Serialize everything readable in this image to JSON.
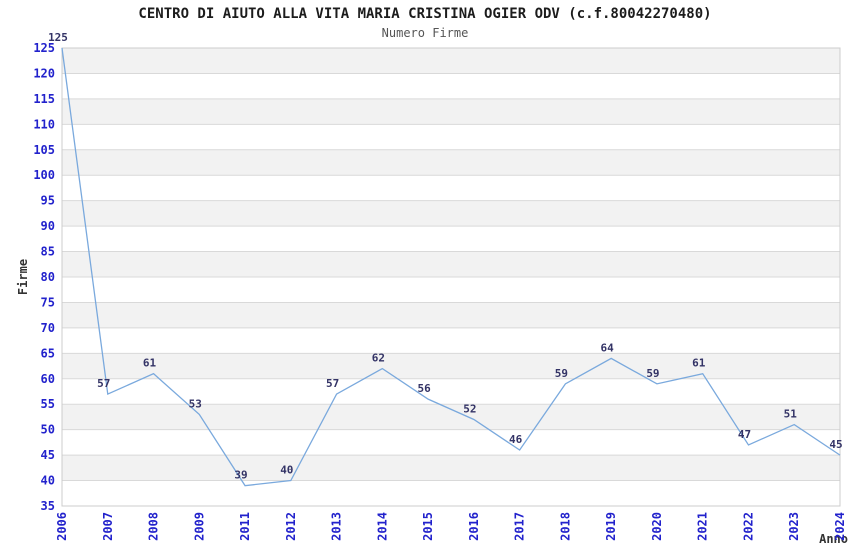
{
  "title": "CENTRO DI AIUTO ALLA VITA MARIA CRISTINA OGIER ODV (c.f.80042270480)",
  "subtitle": "Numero Firme",
  "chart_data": {
    "type": "line",
    "title": "CENTRO DI AIUTO ALLA VITA MARIA CRISTINA OGIER ODV (c.f.80042270480)",
    "subtitle": "Numero Firme",
    "x": [
      "2006",
      "2007",
      "2008",
      "2009",
      "2011",
      "2012",
      "2013",
      "2014",
      "2015",
      "2016",
      "2017",
      "2018",
      "2019",
      "2020",
      "2021",
      "2022",
      "2023",
      "2024"
    ],
    "values": [
      125,
      57,
      61,
      53,
      39,
      40,
      57,
      62,
      56,
      52,
      46,
      59,
      64,
      59,
      61,
      47,
      51,
      45
    ],
    "series": [
      {
        "name": "Numero Firme",
        "values": [
          125,
          57,
          61,
          53,
          39,
          40,
          57,
          62,
          56,
          52,
          46,
          59,
          64,
          59,
          61,
          47,
          51,
          45
        ]
      }
    ],
    "xlabel": "Anno",
    "ylabel": "Firme",
    "ylim": [
      35,
      125
    ],
    "ytick_step": 5,
    "grid": true,
    "legend_position": "none",
    "banded_background": true,
    "data_labels_shown": true,
    "colors": {
      "line": "#7aa9dd",
      "axis_ticks": "#2222cc",
      "data_labels": "#333366",
      "band": "#f2f2f2",
      "grid": "#d9d9d9",
      "border": "#cccccc",
      "axis_titles": "#333333",
      "title": "#1c1c1c",
      "subtitle": "#555555"
    }
  }
}
